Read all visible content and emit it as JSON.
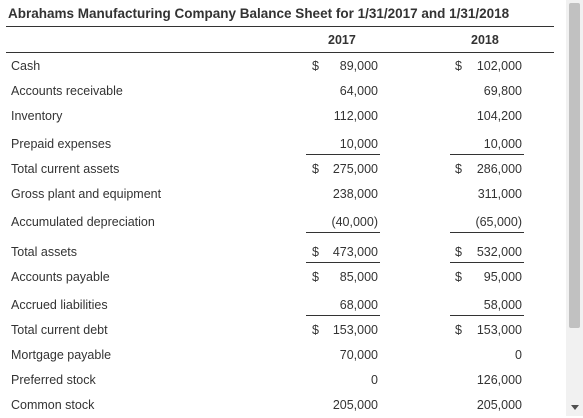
{
  "title": "Abrahams Manufacturing Company Balance Sheet for 1/31/2017 and 1/31/2018",
  "years": [
    "2017",
    "2018"
  ],
  "rows": [
    {
      "label": "Cash",
      "c1": "$",
      "v1": "89,000",
      "c2": "$",
      "v2": "102,000"
    },
    {
      "label": "Accounts receivable",
      "c1": "",
      "v1": "64,000",
      "c2": "",
      "v2": "69,800"
    },
    {
      "label": "Inventory",
      "c1": "",
      "v1": "112,000",
      "c2": "",
      "v2": "104,200"
    },
    {
      "label": "Prepaid expenses",
      "c1": "",
      "v1": "10,000",
      "c2": "",
      "v2": "10,000"
    },
    {
      "label": "Total current assets",
      "c1": "$",
      "v1": "275,000",
      "c2": "$",
      "v2": "286,000"
    },
    {
      "label": "Gross plant and equipment",
      "c1": "",
      "v1": "238,000",
      "c2": "",
      "v2": "311,000"
    },
    {
      "label": "Accumulated depreciation",
      "c1": "",
      "v1": "(40,000)",
      "c2": "",
      "v2": "(65,000)"
    },
    {
      "label": "Total assets",
      "c1": "$",
      "v1": "473,000",
      "c2": "$",
      "v2": "532,000"
    },
    {
      "label": "Accounts payable",
      "c1": "$",
      "v1": "85,000",
      "c2": "$",
      "v2": "95,000"
    },
    {
      "label": "Accrued liabilities",
      "c1": "",
      "v1": "68,000",
      "c2": "",
      "v2": "58,000"
    },
    {
      "label": "Total current debt",
      "c1": "$",
      "v1": "153,000",
      "c2": "$",
      "v2": "153,000"
    },
    {
      "label": "Mortgage payable",
      "c1": "",
      "v1": "70,000",
      "c2": "",
      "v2": "0"
    },
    {
      "label": "Preferred stock",
      "c1": "",
      "v1": "0",
      "c2": "",
      "v2": "126,000"
    },
    {
      "label": "Common stock",
      "c1": "",
      "v1": "205,000",
      "c2": "",
      "v2": "205,000"
    }
  ]
}
